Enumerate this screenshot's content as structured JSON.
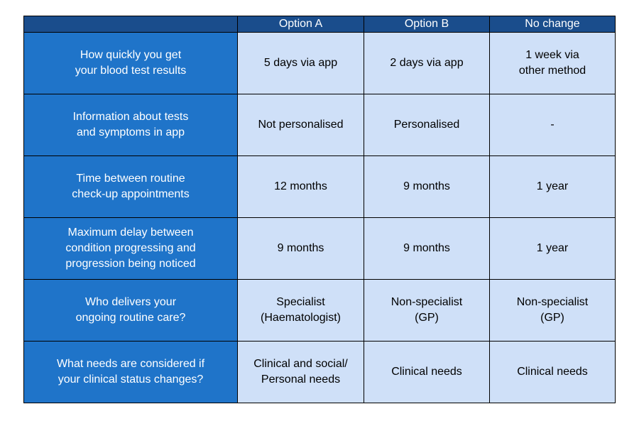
{
  "table": {
    "columns": [
      "Option A",
      "Option B",
      "No change"
    ],
    "rows": [
      {
        "label": "How quickly you get\nyour blood test results",
        "cells": [
          "5 days via app",
          "2 days via app",
          "1 week via\nother method"
        ]
      },
      {
        "label": "Information about tests\nand symptoms in app",
        "cells": [
          "Not personalised",
          "Personalised",
          "-"
        ]
      },
      {
        "label": "Time between routine\ncheck-up appointments",
        "cells": [
          "12 months",
          "9 months",
          "1 year"
        ]
      },
      {
        "label": "Maximum delay between\ncondition progressing and\nprogression being noticed",
        "cells": [
          "9 months",
          "9 months",
          "1 year"
        ]
      },
      {
        "label": "Who delivers your\nongoing routine care?",
        "cells": [
          "Specialist\n(Haematologist)",
          "Non-specialist\n(GP)",
          "Non-specialist\n(GP)"
        ]
      },
      {
        "label": "What needs are considered if\nyour clinical status changes?",
        "cells": [
          "Clinical and social/\nPersonal needs",
          "Clinical needs",
          "Clinical needs"
        ]
      }
    ]
  }
}
